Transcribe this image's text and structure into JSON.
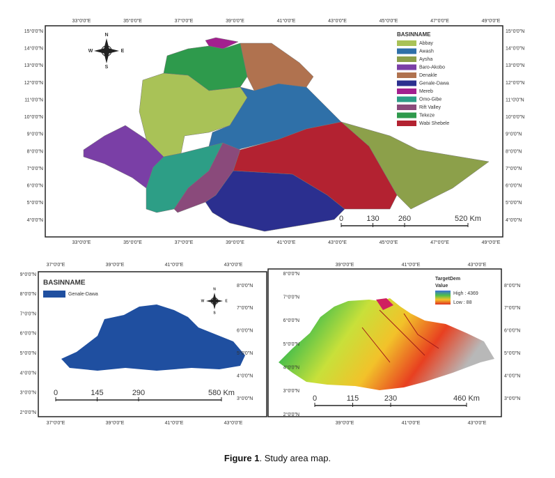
{
  "top_map": {
    "top_lon_labels": [
      "33°0'0\"E",
      "35°0'0\"E",
      "37°0'0\"E",
      "39°0'0\"E",
      "41°0'0\"E",
      "43°0'0\"E",
      "45°0'0\"E",
      "47°0'0\"E",
      "49°0'0\"E"
    ],
    "bottom_lon_labels": [
      "33°0'0\"E",
      "35°0'0\"E",
      "37°0'0\"E",
      "39°0'0\"E",
      "41°0'0\"E",
      "43°0'0\"E",
      "45°0'0\"E",
      "47°0'0\"E",
      "49°0'0\"E"
    ],
    "left_lat_labels": [
      "15°0'0\"N",
      "14°0'0\"N",
      "13°0'0\"N",
      "12°0'0\"N",
      "11°0'0\"N",
      "10°0'0\"N",
      "9°0'0\"N",
      "8°0'0\"N",
      "7°0'0\"N",
      "6°0'0\"N",
      "5°0'0\"N",
      "4°0'0\"N"
    ],
    "right_lat_labels": [
      "15°0'0\"N",
      "14°0'0\"N",
      "13°0'0\"N",
      "12°0'0\"N",
      "11°0'0\"N",
      "10°0'0\"N",
      "9°0'0\"N",
      "8°0'0\"N",
      "7°0'0\"N",
      "6°0'0\"N",
      "5°0'0\"N",
      "4°0'0\"N"
    ],
    "compass": {
      "n": "N",
      "s": "S",
      "w": "W",
      "e": "E"
    },
    "legend": {
      "title": "BASINNAME",
      "items": [
        {
          "name": "Abbay",
          "color": "#a9c257"
        },
        {
          "name": "Awash",
          "color": "#2f70a8"
        },
        {
          "name": "Aysha",
          "color": "#8ca04a"
        },
        {
          "name": "Baro-Akobo",
          "color": "#7a3fa6"
        },
        {
          "name": "Denakle",
          "color": "#b0724f"
        },
        {
          "name": "Genale-Dawa",
          "color": "#2b2f8f"
        },
        {
          "name": "Mereb",
          "color": "#a3208f"
        },
        {
          "name": "Omo-Gibe",
          "color": "#2d9e86"
        },
        {
          "name": "Rift Valley",
          "color": "#8a4a7b"
        },
        {
          "name": "Tekeze",
          "color": "#2e9a4c"
        },
        {
          "name": "Wabi Shebele",
          "color": "#b32231"
        }
      ]
    },
    "scale": [
      "0",
      "130",
      "260",
      "520 Km"
    ]
  },
  "bottom_left_map": {
    "top_lon_labels": [
      "37°0'0\"E",
      "39°0'0\"E",
      "41°0'0\"E",
      "43°0'0\"E"
    ],
    "bottom_lon_labels": [
      "37°0'0\"E",
      "39°0'0\"E",
      "41°0'0\"E",
      "43°0'0\"E"
    ],
    "left_lat_labels": [
      "9°0'0\"N",
      "8°0'0\"N",
      "7°0'0\"N",
      "6°0'0\"N",
      "5°0'0\"N",
      "4°0'0\"N",
      "3°0'0\"N",
      "2°0'0\"N"
    ],
    "right_lat_labels": [
      "8°0'0\"N",
      "7°0'0\"N",
      "6°0'0\"N",
      "5°0'0\"N",
      "4°0'0\"N",
      "3°0'0\"N"
    ],
    "compass": {
      "n": "N",
      "s": "S",
      "w": "W",
      "e": "E"
    },
    "legend": {
      "title": "BASINNAME",
      "items": [
        {
          "name": "Genale-Dawa",
          "color": "#1f4fa0"
        }
      ]
    },
    "scale": [
      "0",
      "145",
      "290",
      "580 Km"
    ]
  },
  "bottom_right_map": {
    "top_lon_labels": [
      "39°0'0\"E",
      "41°0'0\"E",
      "43°0'0\"E"
    ],
    "bottom_lon_labels": [
      "39°0'0\"E",
      "41°0'0\"E",
      "43°0'0\"E"
    ],
    "left_lat_labels": [
      "8°0'0\"N",
      "7°0'0\"N",
      "6°0'0\"N",
      "5°0'0\"N",
      "4°0'0\"N",
      "3°0'0\"N",
      "2°0'0\"N"
    ],
    "right_lat_labels": [
      "8°0'0\"N",
      "7°0'0\"N",
      "6°0'0\"N",
      "5°0'0\"N",
      "4°0'0\"N",
      "3°0'0\"N"
    ],
    "legend": {
      "title": "TargetDem",
      "subtitle": "Value",
      "high": "High : 4369",
      "low": "Low : 88"
    },
    "scale": [
      "0",
      "115",
      "230",
      "460 Km"
    ]
  },
  "caption": {
    "label": "Figure 1",
    "text": ". Study area map."
  }
}
